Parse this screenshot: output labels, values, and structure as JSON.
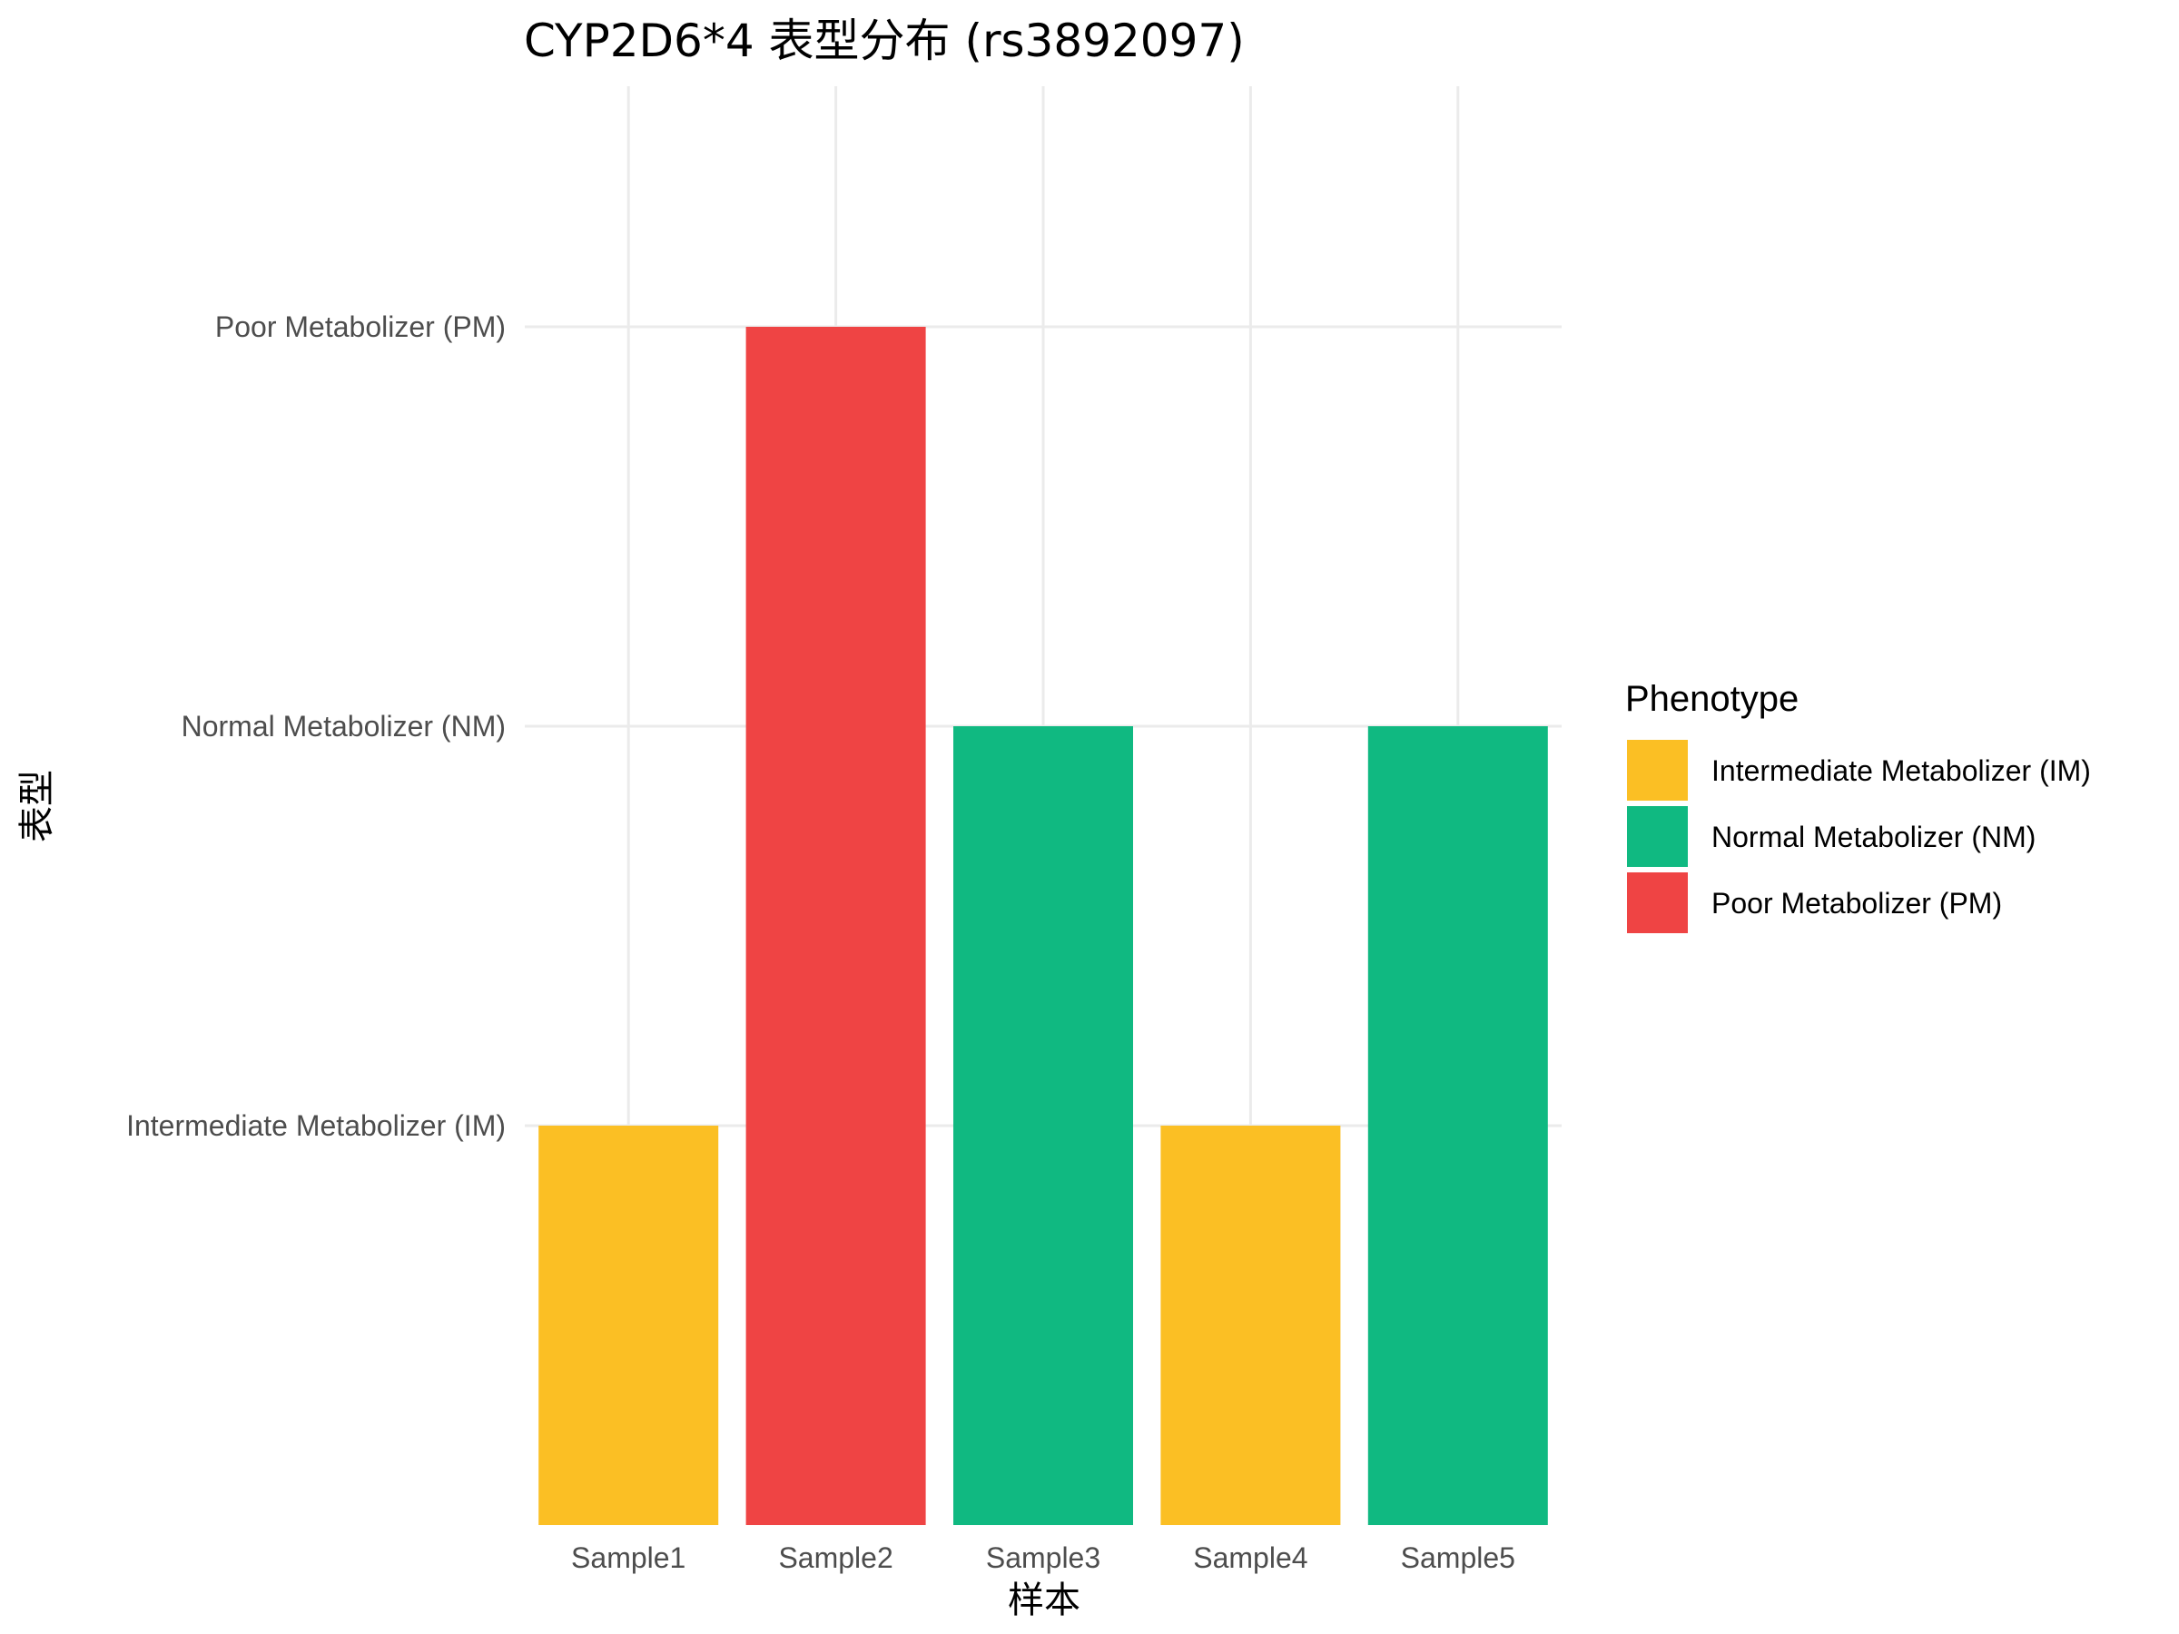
{
  "chart_data": {
    "type": "bar",
    "title": "CYP2D6*4 表型分布 (rs3892097)",
    "xlabel": "样本",
    "ylabel": "表型",
    "categories": [
      "Sample1",
      "Sample2",
      "Sample3",
      "Sample4",
      "Sample5"
    ],
    "y_levels": [
      "Intermediate Metabolizer (IM)",
      "Normal Metabolizer (NM)",
      "Poor Metabolizer (PM)"
    ],
    "values": [
      "Intermediate Metabolizer (IM)",
      "Poor Metabolizer (PM)",
      "Normal Metabolizer (NM)",
      "Intermediate Metabolizer (IM)",
      "Normal Metabolizer (NM)"
    ],
    "legend": {
      "title": "Phenotype",
      "position": "right",
      "entries": [
        {
          "label": "Intermediate Metabolizer (IM)",
          "color": "#FBBF24"
        },
        {
          "label": "Normal Metabolizer (NM)",
          "color": "#10B981"
        },
        {
          "label": "Poor Metabolizer (PM)",
          "color": "#EF4444"
        }
      ]
    },
    "grid": true
  }
}
